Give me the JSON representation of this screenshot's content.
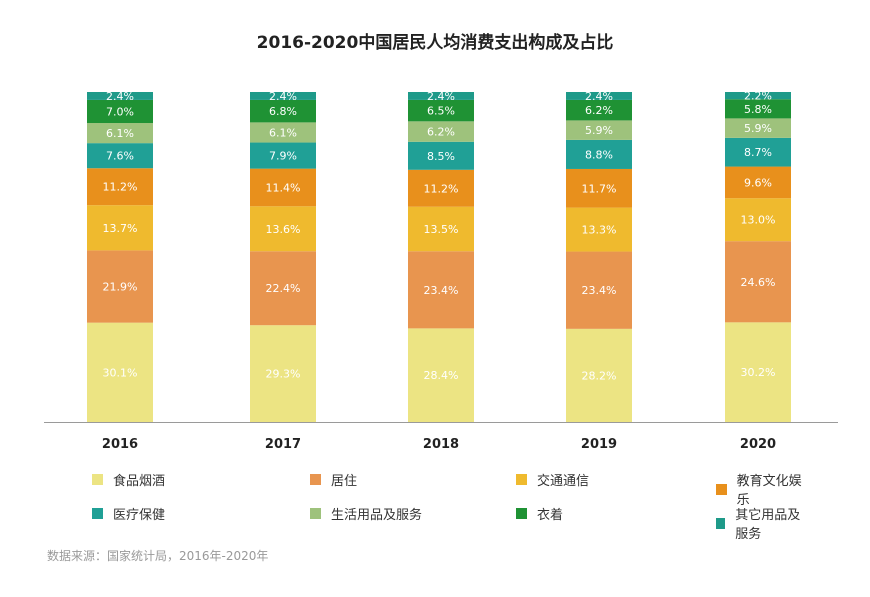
{
  "chart_data": {
    "type": "bar",
    "stacked": true,
    "title": "2016-2020中国居民人均消费支出构成及占比",
    "categories": [
      "2016",
      "2017",
      "2018",
      "2019",
      "2020"
    ],
    "series": [
      {
        "name": "食品烟酒",
        "color": "#ece483",
        "labels": [
          "30.1%",
          "29.3%",
          "28.4%",
          "28.2%",
          "30.2%"
        ],
        "values": [
          30.1,
          29.3,
          28.4,
          28.2,
          30.2
        ]
      },
      {
        "name": "居住",
        "color": "#e8954f",
        "labels": [
          "21.9%",
          "22.4%",
          "23.4%",
          "23.4%",
          "24.6%"
        ],
        "values": [
          21.9,
          22.4,
          23.4,
          23.4,
          24.6
        ]
      },
      {
        "name": "交通通信",
        "color": "#efba2e",
        "labels": [
          "13.7%",
          "13.6%",
          "13.5%",
          "13.3%",
          "13.0%"
        ],
        "values": [
          13.7,
          13.6,
          13.5,
          13.3,
          13.0
        ]
      },
      {
        "name": "教育文化娱乐",
        "color": "#e8901c",
        "labels": [
          "11.2%",
          "11.4%",
          "11.2%",
          "11.7%",
          "9.6%"
        ],
        "values": [
          11.2,
          11.4,
          11.2,
          11.7,
          9.6
        ]
      },
      {
        "name": "医疗保健",
        "color": "#20a096",
        "labels": [
          "7.6%",
          "7.9%",
          "8.5%",
          "8.8%",
          "8.7%"
        ],
        "values": [
          7.6,
          7.9,
          8.5,
          8.8,
          8.7
        ]
      },
      {
        "name": "生活用品及服务",
        "color": "#9ec27c",
        "labels": [
          "6.1%",
          "6.1%",
          "6.2%",
          "5.9%",
          "5.9%"
        ],
        "values": [
          6.1,
          6.1,
          6.2,
          5.9,
          5.9
        ]
      },
      {
        "name": "衣着",
        "color": "#1f9234",
        "labels": [
          "7.0%",
          "6.8%",
          "6.5%",
          "6.2%",
          "5.8%"
        ],
        "values": [
          7.0,
          6.8,
          6.5,
          6.2,
          5.8
        ]
      },
      {
        "name": "其它用品及服务",
        "color": "#1e9a89",
        "labels": [
          "2.4%",
          "2.4%",
          "2.4%",
          "2.4%",
          "2.2%"
        ],
        "values": [
          2.4,
          2.4,
          2.4,
          2.4,
          2.2
        ]
      }
    ],
    "ylim": [
      0,
      100
    ],
    "legend_position": "bottom",
    "xlabel": "",
    "ylabel": ""
  },
  "source": "数据来源：国家统计局，2016年-2020年"
}
